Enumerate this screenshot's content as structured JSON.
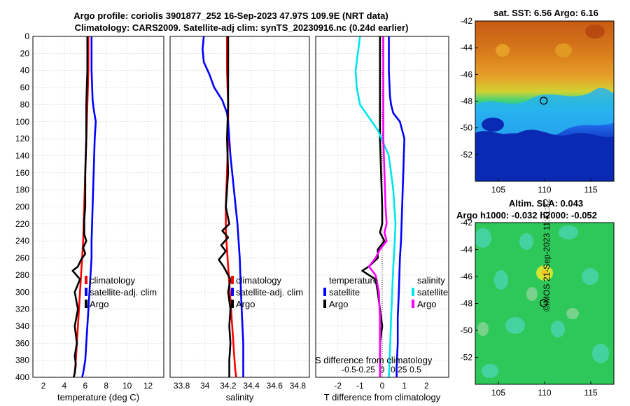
{
  "header": {
    "line1": "Argo profile: coriolis 3901877_252 16-Sep-2023 47.97S 109.9E (NRT data)",
    "line2": "Climatology: CARS2009. Satellite-adj clim: synTS_20230916.nc (0.24d earlier)"
  },
  "credit": "©IMOS 21-Sep-2023 11:41:32",
  "colors": {
    "climatology": "#ff0000",
    "satellite": "#0000ff",
    "argo": "#000000",
    "sal_satellite": "#00e5ee",
    "sal_argo": "#ff00ff"
  },
  "chart_data": [
    {
      "type": "line",
      "panel": "temperature",
      "xlabel": "temperature (deg C)",
      "ylabel": "",
      "xlim": [
        1,
        13.5
      ],
      "ylim": [
        400,
        0
      ],
      "xticks": [
        "2",
        "4",
        "6",
        "8",
        "10",
        "12"
      ],
      "xtick_values": [
        2,
        4,
        6,
        8,
        10,
        12
      ],
      "yticks": [
        "0",
        "20",
        "40",
        "60",
        "80",
        "100",
        "120",
        "140",
        "160",
        "180",
        "200",
        "220",
        "240",
        "260",
        "280",
        "300",
        "320",
        "340",
        "360",
        "380",
        "400"
      ],
      "ytick_values": [
        0,
        20,
        40,
        60,
        80,
        100,
        120,
        140,
        160,
        180,
        200,
        220,
        240,
        260,
        280,
        300,
        320,
        340,
        360,
        380,
        400
      ],
      "legend": [
        "climatology",
        "satellite-adj. clim",
        "Argo"
      ],
      "series": [
        {
          "name": "climatology",
          "color": "#ff0000",
          "x": [
            6.3,
            6.3,
            6.2,
            6.1,
            6.0,
            5.9,
            5.8,
            5.7,
            5.6,
            5.5,
            5.4,
            5.3,
            5.2,
            5.1,
            5.0,
            4.9
          ],
          "y": [
            0,
            40,
            80,
            120,
            160,
            200,
            240,
            260,
            280,
            300,
            320,
            340,
            360,
            380,
            395,
            400
          ]
        },
        {
          "name": "satellite-adj. clim",
          "color": "#0000ff",
          "x": [
            6.6,
            6.6,
            6.7,
            6.8,
            7.0,
            6.9,
            6.8,
            6.7,
            6.6,
            6.6,
            6.5,
            6.4,
            6.3,
            6.2,
            6.1,
            6.0,
            5.8,
            5.7
          ],
          "y": [
            0,
            40,
            75,
            85,
            100,
            120,
            160,
            200,
            240,
            260,
            280,
            300,
            320,
            340,
            360,
            380,
            395,
            400
          ]
        },
        {
          "name": "Argo",
          "color": "#000000",
          "x": [
            6.2,
            6.2,
            6.1,
            6.1,
            6.0,
            6.0,
            6.0,
            5.9,
            5.9,
            5.9,
            6.1,
            5.8,
            6.0,
            5.6,
            5.3,
            4.8,
            5.5,
            5.0,
            5.3,
            5.0,
            5.2,
            5.0,
            5.1,
            5.0,
            4.9
          ],
          "y": [
            0,
            40,
            80,
            120,
            160,
            180,
            200,
            215,
            225,
            232,
            240,
            248,
            255,
            262,
            270,
            275,
            285,
            300,
            320,
            340,
            360,
            375,
            385,
            395,
            400
          ]
        }
      ]
    },
    {
      "type": "line",
      "panel": "salinity",
      "xlabel": "salinity",
      "xlim": [
        33.7,
        34.9
      ],
      "ylim": [
        400,
        0
      ],
      "xticks": [
        "33.8",
        "34",
        "34.2",
        "34.4",
        "34.6",
        "34.8"
      ],
      "xtick_values": [
        33.8,
        34.0,
        34.2,
        34.4,
        34.6,
        34.8
      ],
      "legend": [
        "climatology",
        "satellite-adj. clim",
        "Argo"
      ],
      "series": [
        {
          "name": "climatology",
          "color": "#ff0000",
          "x": [
            34.19,
            34.19,
            34.2,
            34.2,
            34.19,
            34.18,
            34.18,
            34.19,
            34.2,
            34.21,
            34.22,
            34.23,
            34.24,
            34.25,
            34.26,
            34.27
          ],
          "y": [
            0,
            40,
            80,
            120,
            160,
            200,
            230,
            250,
            270,
            290,
            310,
            330,
            350,
            370,
            390,
            400
          ]
        },
        {
          "name": "satellite-adj. clim",
          "color": "#0000ff",
          "x": [
            33.99,
            33.98,
            33.99,
            34.04,
            34.08,
            34.15,
            34.19,
            34.2,
            34.22,
            34.25,
            34.28,
            34.3,
            34.31,
            34.32,
            34.33,
            34.33,
            34.33
          ],
          "y": [
            0,
            15,
            30,
            45,
            60,
            75,
            90,
            100,
            140,
            180,
            220,
            260,
            300,
            330,
            360,
            390,
            400
          ]
        },
        {
          "name": "Argo",
          "color": "#000000",
          "x": [
            34.2,
            34.2,
            34.2,
            34.19,
            34.2,
            34.18,
            34.21,
            34.15,
            34.2,
            34.14,
            34.18,
            34.12,
            34.16,
            34.22,
            34.2,
            34.22,
            34.21,
            34.22,
            34.21,
            34.21
          ],
          "y": [
            0,
            40,
            80,
            120,
            160,
            200,
            220,
            228,
            236,
            245,
            252,
            262,
            270,
            285,
            300,
            320,
            340,
            360,
            380,
            400
          ]
        }
      ]
    },
    {
      "type": "line",
      "panel": "difference",
      "xlabel": "T difference from climatology",
      "top_axis_label": "S difference from climatology",
      "xlim": [
        -3,
        3
      ],
      "ylim": [
        400,
        0
      ],
      "xticks": [
        "-2",
        "-1",
        "0",
        "1",
        "2"
      ],
      "xtick_values": [
        -2,
        -1,
        0,
        1,
        2
      ],
      "top_xticks": [
        "-0.5",
        "-0.25",
        "0",
        "0.25",
        "0.5"
      ],
      "top_xtick_values": [
        -1.5,
        -0.75,
        0,
        0.75,
        1.5
      ],
      "legend_left_title": "temperature",
      "legend_right_title": "salinity",
      "legend_left": [
        "satellite",
        "Argo"
      ],
      "legend_right": [
        "satellite",
        "Argo"
      ],
      "series": [
        {
          "name": "T satellite",
          "color": "#0000ff",
          "x": [
            0.3,
            0.3,
            0.35,
            0.4,
            0.5,
            0.8,
            1.0,
            0.95,
            0.9,
            0.85,
            0.8,
            0.75,
            0.7,
            0.7,
            0.65,
            0.65
          ],
          "y": [
            0,
            40,
            70,
            80,
            90,
            100,
            120,
            160,
            200,
            240,
            260,
            300,
            330,
            360,
            390,
            400
          ]
        },
        {
          "name": "T Argo",
          "color": "#000000",
          "x": [
            -0.1,
            -0.1,
            -0.1,
            -0.1,
            -0.05,
            0,
            0,
            -0.1,
            0.1,
            -0.2,
            -0.2,
            -0.6,
            -0.9,
            -0.3,
            -0.2,
            -0.1,
            0,
            -0.1,
            -0.1,
            -0.1
          ],
          "y": [
            0,
            40,
            80,
            120,
            160,
            200,
            220,
            230,
            240,
            250,
            260,
            270,
            275,
            285,
            300,
            320,
            340,
            360,
            380,
            400
          ]
        },
        {
          "name": "S satellite",
          "color": "#00e5ee",
          "x": [
            -1.0,
            -1.1,
            -1.2,
            -1.15,
            -1.0,
            -0.6,
            -0.2,
            0.3,
            0.5,
            0.6,
            0.55,
            0.5,
            0.45,
            0.4,
            0.35,
            0.3
          ],
          "y": [
            0,
            20,
            40,
            60,
            80,
            95,
            110,
            140,
            180,
            220,
            250,
            270,
            300,
            330,
            370,
            400
          ]
        },
        {
          "name": "S Argo",
          "color": "#ff00ff",
          "x": [
            0.05,
            0.05,
            0.05,
            0.05,
            0.1,
            0.15,
            0.2,
            0.1,
            0.2,
            -0.1,
            -0.3,
            -0.6,
            -0.3,
            -0.15,
            -0.1,
            -0.1,
            -0.1
          ],
          "y": [
            0,
            40,
            80,
            120,
            160,
            200,
            220,
            230,
            240,
            250,
            260,
            270,
            280,
            300,
            330,
            360,
            400
          ]
        }
      ]
    },
    {
      "type": "heatmap",
      "panel": "sat_sst_map",
      "title": "sat. SST: 6.56 Argo: 6.16",
      "xlim": [
        102.5,
        117.5
      ],
      "ylim": [
        -54,
        -42
      ],
      "xticks": [
        "105",
        "110",
        "115"
      ],
      "xtick_values": [
        105,
        110,
        115
      ],
      "yticks": [
        "-42",
        "-44",
        "-46",
        "-48",
        "-50",
        "-52"
      ],
      "ytick_values": [
        -42,
        -44,
        -46,
        -48,
        -50,
        -52
      ],
      "marker": {
        "lon": 109.9,
        "lat": -47.97
      }
    },
    {
      "type": "heatmap",
      "panel": "sla_map",
      "title1": "Altim. SLA: 0.043",
      "title2": "Argo h1000: -0.032 h2000: -0.052",
      "xlim": [
        102.5,
        117.5
      ],
      "ylim": [
        -54,
        -42
      ],
      "xticks": [
        "105",
        "110",
        "115"
      ],
      "xtick_values": [
        105,
        110,
        115
      ],
      "yticks": [
        "-42",
        "-44",
        "-46",
        "-48",
        "-50",
        "-52"
      ],
      "ytick_values": [
        -42,
        -44,
        -46,
        -48,
        -50,
        -52
      ],
      "marker": {
        "lon": 109.9,
        "lat": -47.97
      }
    }
  ]
}
